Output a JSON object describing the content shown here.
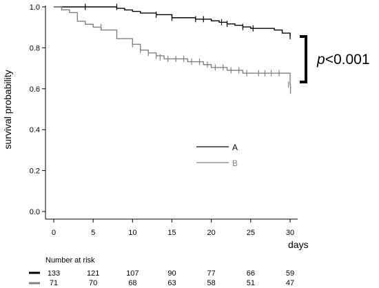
{
  "chart_data": {
    "type": "line",
    "xlabel": "days",
    "ylabel": "survival probability",
    "xlim": [
      -1,
      31
    ],
    "ylim": [
      -0.02,
      1.0
    ],
    "x_ticks": [
      0,
      5,
      10,
      15,
      20,
      25,
      30
    ],
    "y_ticks": [
      0.0,
      0.2,
      0.4,
      0.6,
      0.8,
      1.0
    ],
    "y_tick_labels": [
      "0.0",
      "0.2",
      "0.4",
      "0.6",
      "0.8",
      "1.0"
    ],
    "grid": false,
    "legend_position": "center-right",
    "series": [
      {
        "name": "A",
        "color": "#000000",
        "steps": [
          [
            0,
            1.0
          ],
          [
            5,
            1.0
          ],
          [
            8,
            0.993
          ],
          [
            9,
            0.985
          ],
          [
            10,
            0.978
          ],
          [
            11,
            0.97
          ],
          [
            13,
            0.962
          ],
          [
            15,
            0.947
          ],
          [
            18,
            0.94
          ],
          [
            20,
            0.932
          ],
          [
            21,
            0.925
          ],
          [
            22,
            0.917
          ],
          [
            23,
            0.91
          ],
          [
            24,
            0.902
          ],
          [
            25,
            0.895
          ],
          [
            28,
            0.887
          ],
          [
            29,
            0.872
          ],
          [
            30,
            0.857
          ]
        ],
        "censor": [
          [
            4,
            1.0
          ],
          [
            8,
            1.0
          ],
          [
            13,
            0.962
          ],
          [
            15,
            0.947
          ],
          [
            18,
            0.94
          ],
          [
            19,
            0.94
          ],
          [
            21.3,
            0.925
          ],
          [
            22,
            0.917
          ],
          [
            24,
            0.902
          ],
          [
            25.3,
            0.895
          ],
          [
            30,
            0.857
          ]
        ]
      },
      {
        "name": "B",
        "color": "#808080",
        "steps": [
          [
            0,
            1.0
          ],
          [
            1,
            0.986
          ],
          [
            2,
            0.972
          ],
          [
            3,
            0.93
          ],
          [
            4,
            0.915
          ],
          [
            5,
            0.901
          ],
          [
            6,
            0.887
          ],
          [
            8,
            0.845
          ],
          [
            10,
            0.817
          ],
          [
            11,
            0.789
          ],
          [
            12,
            0.775
          ],
          [
            13,
            0.761
          ],
          [
            14,
            0.746
          ],
          [
            17,
            0.732
          ],
          [
            18,
            0.732
          ],
          [
            19,
            0.718
          ],
          [
            20,
            0.704
          ],
          [
            22,
            0.69
          ],
          [
            24,
            0.676
          ],
          [
            30,
            0.62
          ],
          [
            30.05,
            0.575
          ]
        ],
        "censor": [
          [
            6,
            0.901
          ],
          [
            10,
            0.817
          ],
          [
            11,
            0.789
          ],
          [
            12,
            0.775
          ],
          [
            13,
            0.761
          ],
          [
            13.5,
            0.753
          ],
          [
            14.5,
            0.746
          ],
          [
            15.5,
            0.746
          ],
          [
            16.5,
            0.746
          ],
          [
            17.5,
            0.732
          ],
          [
            18.5,
            0.732
          ],
          [
            19.5,
            0.718
          ],
          [
            20.5,
            0.704
          ],
          [
            21.5,
            0.704
          ],
          [
            22.5,
            0.69
          ],
          [
            23.5,
            0.69
          ],
          [
            24.5,
            0.676
          ],
          [
            26,
            0.676
          ],
          [
            26.8,
            0.676
          ],
          [
            27.6,
            0.676
          ],
          [
            28.6,
            0.676
          ],
          [
            29.8,
            0.62
          ]
        ]
      }
    ],
    "annotation": {
      "prefix": "p",
      "rest": "<0.001"
    },
    "risk_table": {
      "title": "Number at risk",
      "rows": [
        {
          "color": "#000000",
          "counts": [
            "133",
            "121",
            "107",
            "90",
            "77",
            "66",
            "59"
          ]
        },
        {
          "color": "#808080",
          "counts": [
            "71",
            "70",
            "68",
            "63",
            "58",
            "51",
            "47"
          ]
        }
      ]
    }
  }
}
